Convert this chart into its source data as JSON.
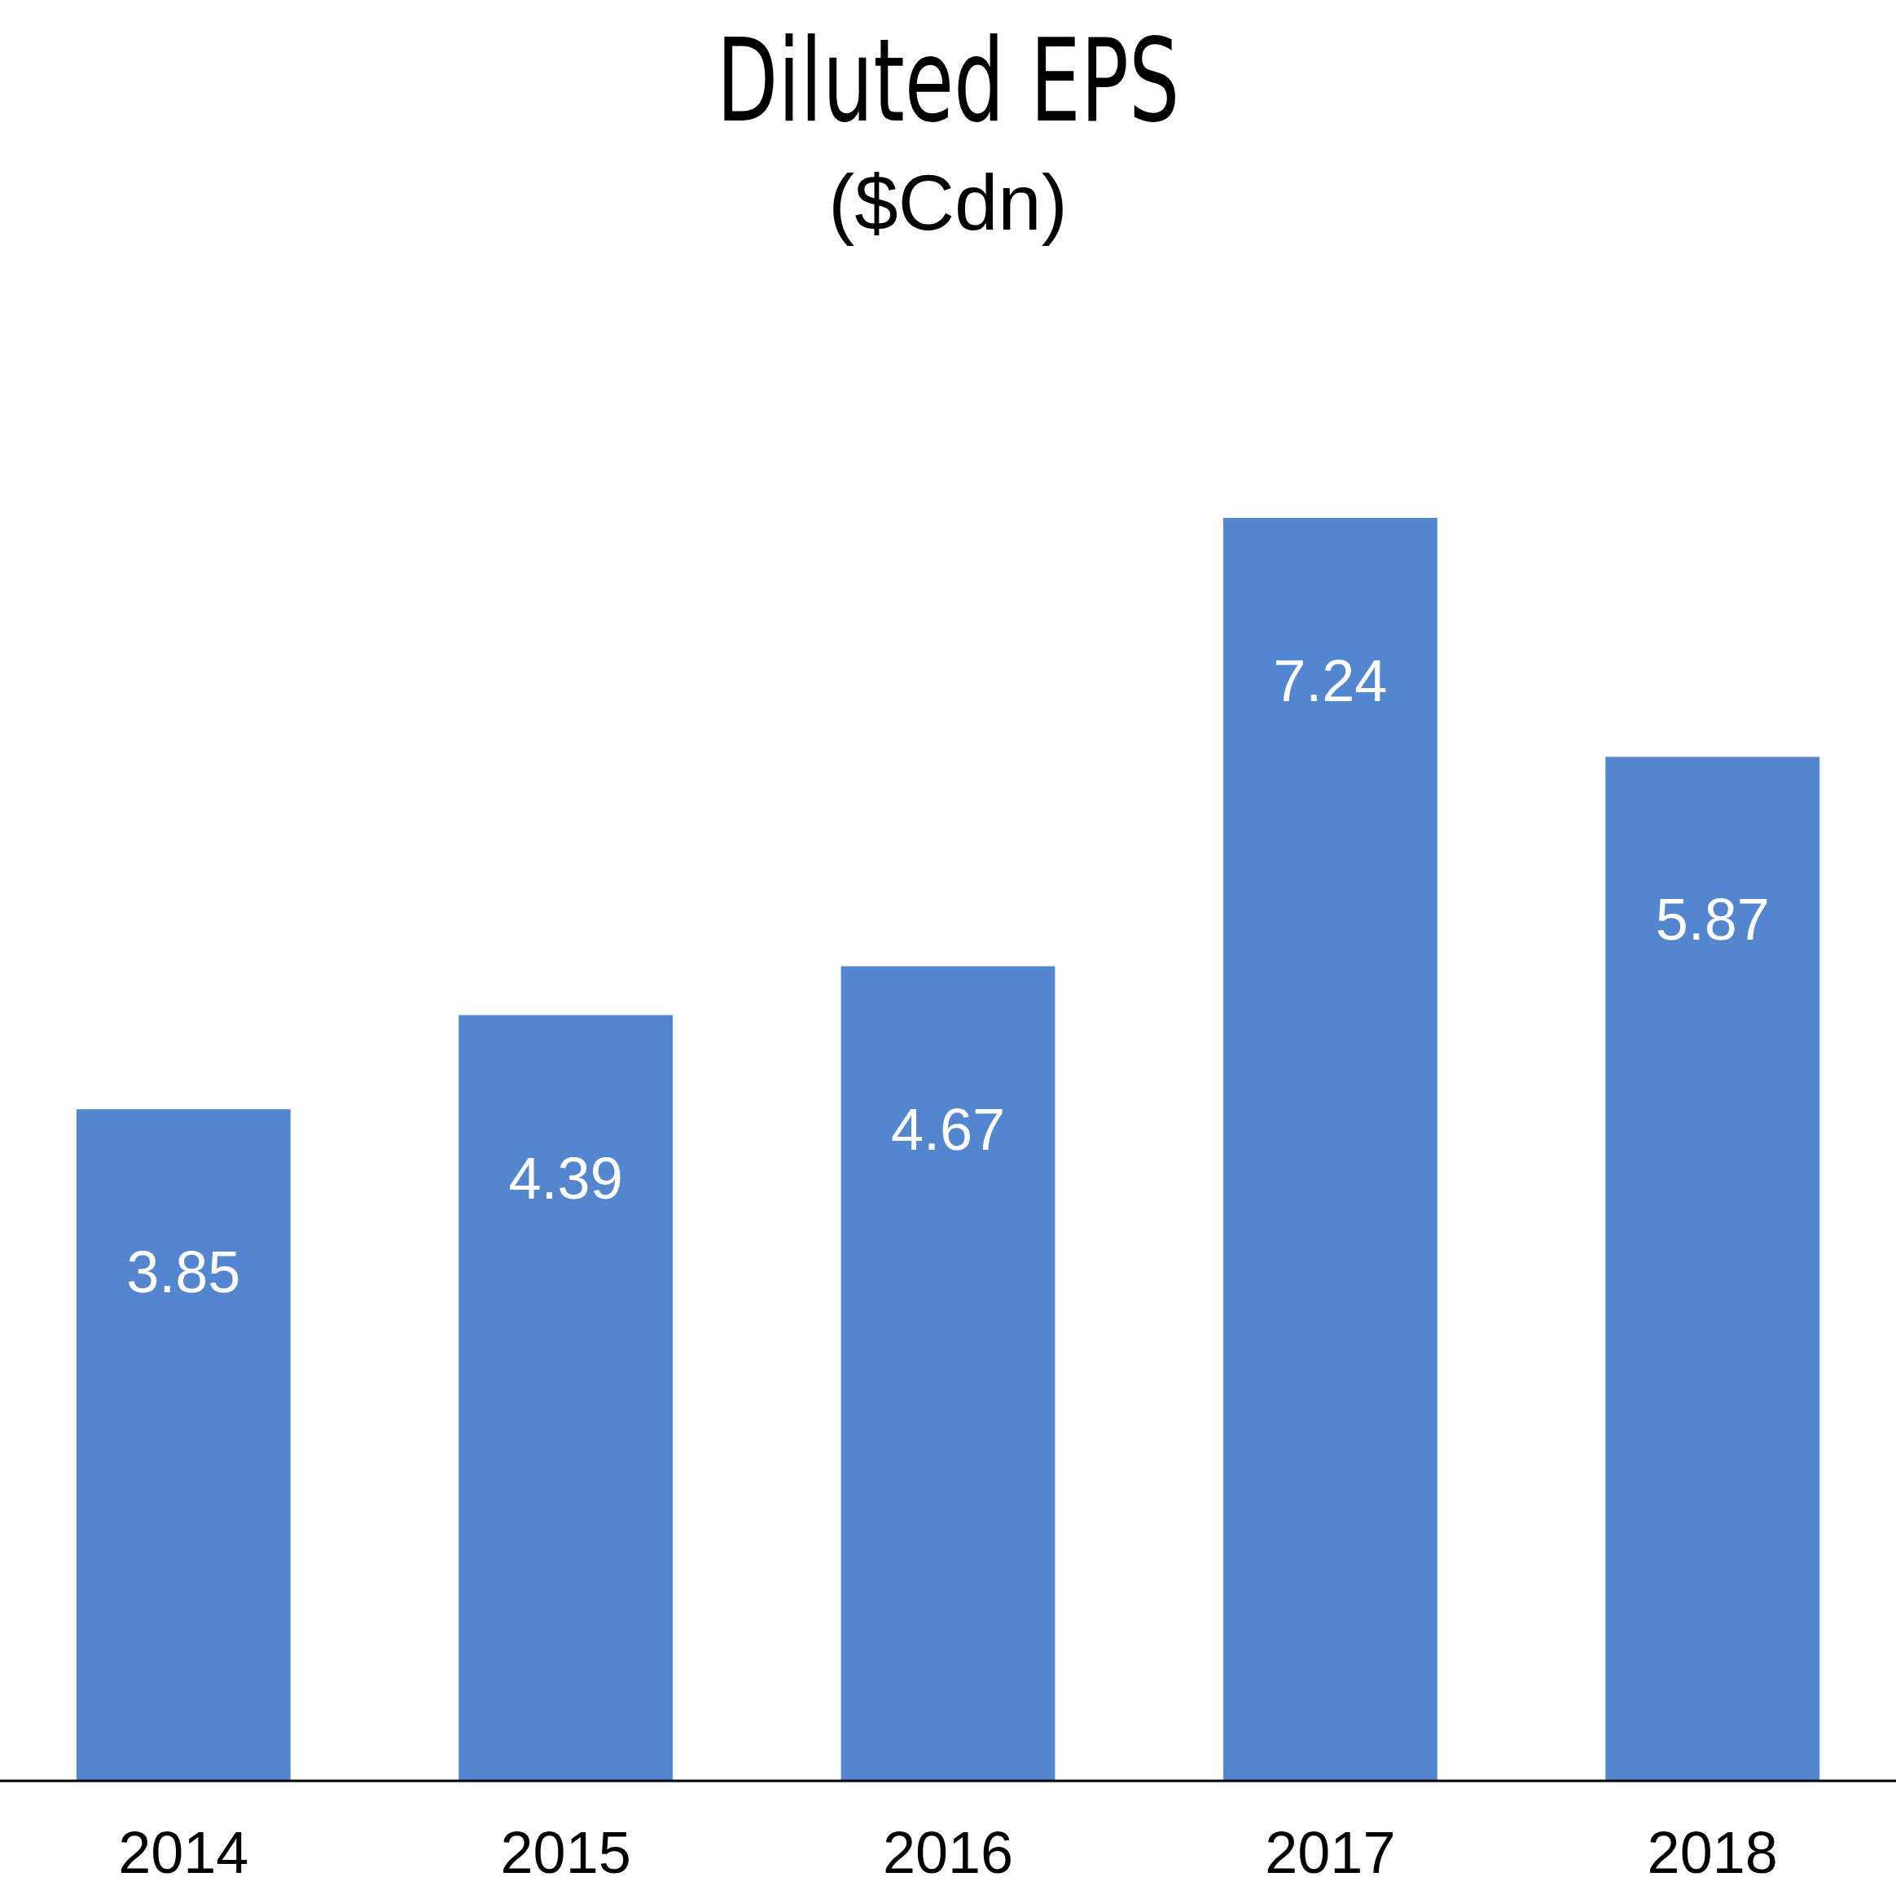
{
  "chart_data": {
    "type": "bar",
    "title": "Diluted EPS",
    "subtitle": "($Cdn)",
    "categories": [
      "2014",
      "2015",
      "2016",
      "2017",
      "2018"
    ],
    "values": [
      3.85,
      4.39,
      4.67,
      7.24,
      5.87
    ],
    "color": "#5386ce",
    "data_labels": true
  }
}
